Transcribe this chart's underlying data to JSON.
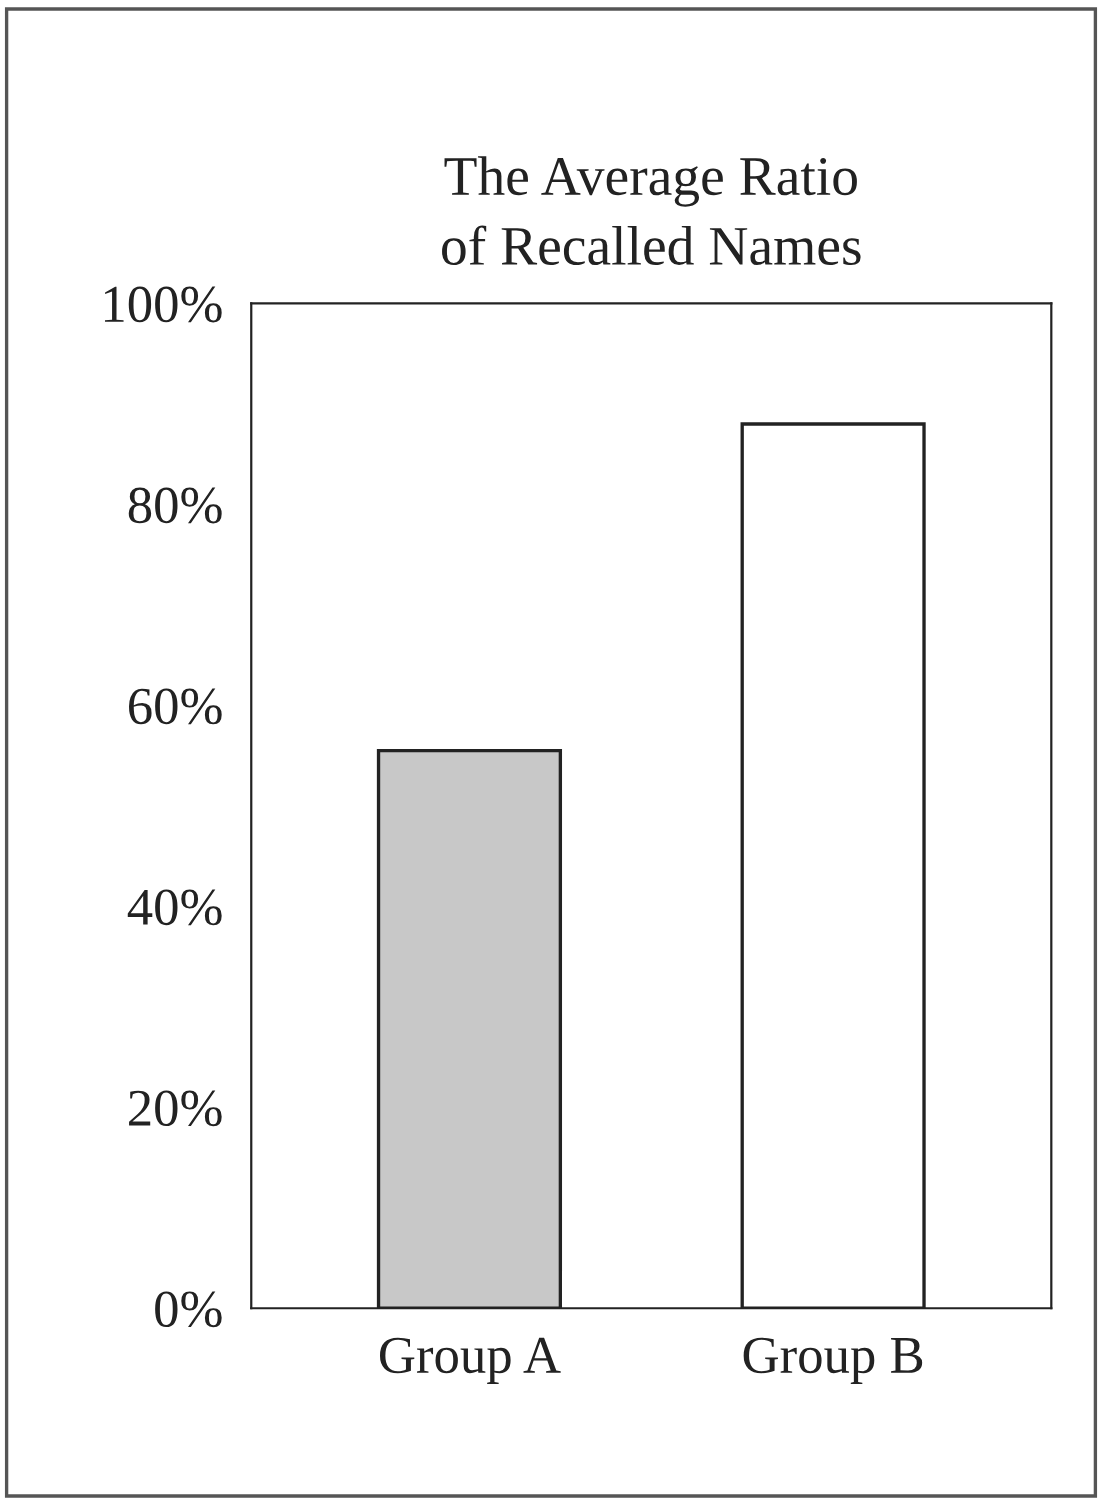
{
  "chart_data": {
    "type": "bar",
    "title": "The Average Ratio\nof Recalled Names",
    "categories": [
      "Group A",
      "Group B"
    ],
    "values": [
      55.5,
      88
    ],
    "colors": [
      "#c8c8c8",
      "#ffffff"
    ],
    "ylim": [
      0,
      100
    ],
    "yticks": [
      {
        "value": 0,
        "label": "0%"
      },
      {
        "value": 20,
        "label": "20%"
      },
      {
        "value": 40,
        "label": "40%"
      },
      {
        "value": 60,
        "label": "60%"
      },
      {
        "value": 80,
        "label": "80%"
      },
      {
        "value": 100,
        "label": "100%"
      }
    ],
    "grid": false
  }
}
